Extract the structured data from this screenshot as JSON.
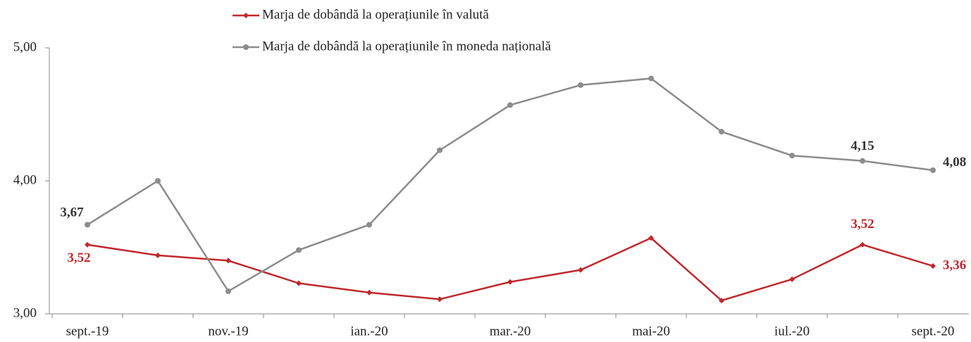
{
  "chart_data": {
    "type": "line",
    "categories": [
      "sept.-19",
      null,
      "nov.-19",
      null,
      "ian.-20",
      null,
      "mar.-20",
      null,
      "mai-20",
      null,
      "iul.-20",
      null,
      "sept.-20"
    ],
    "series": [
      {
        "name": "Marja de dobândă la operațiunile în valută",
        "color": "#c0282d",
        "marker": "diamond",
        "values": [
          3.52,
          3.44,
          3.4,
          3.23,
          3.16,
          3.11,
          3.24,
          3.33,
          3.57,
          3.1,
          3.26,
          3.52,
          3.36
        ],
        "value_labels": [
          "3,52",
          null,
          null,
          null,
          null,
          null,
          null,
          null,
          null,
          null,
          null,
          "3,52",
          "3,36"
        ]
      },
      {
        "name": "Marja de dobândă la operațiunile în moneda națională",
        "color": "#8c8c8c",
        "marker": "circle",
        "values": [
          3.67,
          4.0,
          3.17,
          3.48,
          3.67,
          4.23,
          4.57,
          4.72,
          4.77,
          4.37,
          4.19,
          4.15,
          4.08
        ],
        "value_labels": [
          "3,67",
          null,
          null,
          null,
          null,
          null,
          null,
          null,
          null,
          null,
          null,
          "4,15",
          "4,08"
        ]
      }
    ],
    "ylim": [
      3,
      5
    ],
    "yticks": [
      {
        "value": 3,
        "label": "3,00"
      },
      {
        "value": 4,
        "label": "4,00"
      },
      {
        "value": 5,
        "label": "5,00"
      }
    ],
    "grid": false
  }
}
